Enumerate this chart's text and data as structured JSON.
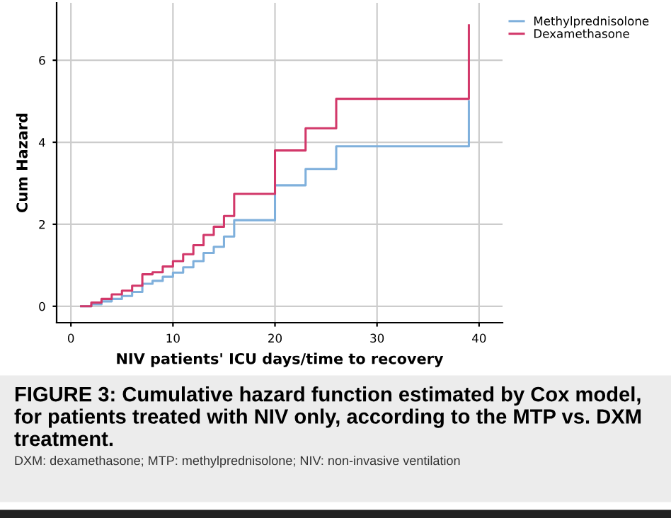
{
  "chart_data": {
    "type": "step",
    "xlabel": "NIV patients' ICU days/time to recovery",
    "ylabel": "Cum Hazard",
    "xlim": [
      -1.4,
      42.3
    ],
    "ylim": [
      -0.4,
      7.4
    ],
    "xticks": [
      0,
      10,
      20,
      30,
      40
    ],
    "yticks": [
      0,
      2,
      4,
      6
    ],
    "grid": true,
    "legend": "top right",
    "series": [
      {
        "name": "Methylprednisolone",
        "color": "#7fb0dc",
        "x": [
          1,
          2,
          3,
          4,
          5,
          6,
          7,
          8,
          9,
          10,
          11,
          12,
          13,
          14,
          15,
          16,
          20,
          23,
          26,
          39
        ],
        "values": [
          0,
          0.05,
          0.12,
          0.18,
          0.25,
          0.35,
          0.55,
          0.62,
          0.72,
          0.82,
          0.95,
          1.1,
          1.3,
          1.45,
          1.7,
          2.1,
          2.95,
          3.35,
          3.9,
          5.0
        ]
      },
      {
        "name": "Dexamethasone",
        "color": "#d2386a",
        "x": [
          1,
          2,
          3,
          4,
          5,
          6,
          7,
          8,
          9,
          10,
          11,
          12,
          13,
          14,
          15,
          16,
          20,
          23,
          26,
          39
        ],
        "values": [
          0,
          0.09,
          0.18,
          0.29,
          0.38,
          0.5,
          0.78,
          0.83,
          0.97,
          1.1,
          1.27,
          1.49,
          1.74,
          1.94,
          2.2,
          2.74,
          3.8,
          4.34,
          5.06,
          6.85
        ]
      }
    ],
    "annotations": [
      "FIGURE 3: Cumulative hazard function estimated by Cox model, for patients treated with NIV only, according to the MTP vs. DXM treatment.",
      "DXM: dexamethasone; MTP: methylprednisolone; NIV: non-invasive ventilation"
    ]
  }
}
